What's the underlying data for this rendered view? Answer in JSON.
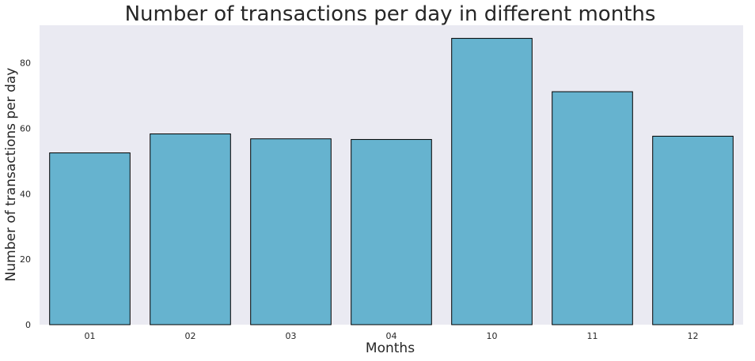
{
  "chart_data": {
    "type": "bar",
    "title": "Number of transactions per day in different months",
    "xlabel": "Months",
    "ylabel": "Number of transactions per day",
    "categories": [
      "01",
      "02",
      "03",
      "04",
      "10",
      "11",
      "12"
    ],
    "values": [
      52.5,
      58.3,
      56.8,
      56.6,
      87.5,
      71.2,
      57.6
    ],
    "ylim": [
      0,
      91.5
    ],
    "yticks": [
      "0",
      "20",
      "40",
      "60",
      "80"
    ],
    "grid": false,
    "bar_color": "#66b3cf",
    "plot_background": "#eaeaf2"
  }
}
